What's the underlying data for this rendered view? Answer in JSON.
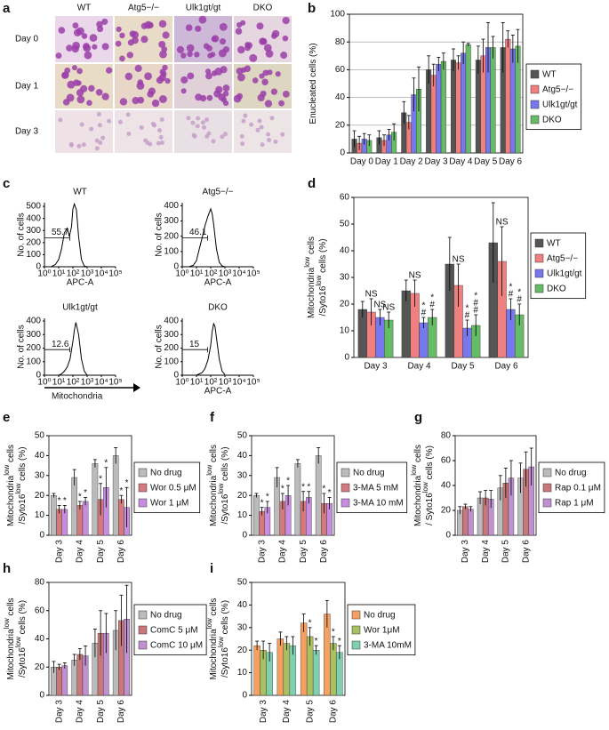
{
  "panel_labels": [
    "a",
    "b",
    "c",
    "d",
    "e",
    "f",
    "g",
    "h",
    "i"
  ],
  "panel_a": {
    "columns": [
      "WT",
      "Atg5−/−",
      "Ulk1gt/gt",
      "DKO"
    ],
    "rows": [
      "Day 0",
      "Day 1",
      "Day 3"
    ]
  },
  "panel_c": {
    "caption": "Mitochondria"
  },
  "chart_data": [
    {
      "type": "bar",
      "ylabel": [
        [
          "Enucleated cells (%)"
        ]
      ],
      "categories": [
        "Day 0",
        "Day 1",
        "Day 2",
        "Day 3",
        "Day 4",
        "Day 5",
        "Day 6"
      ],
      "ylim": [
        0,
        100
      ],
      "yticks": [
        0,
        20,
        40,
        60,
        80,
        100
      ],
      "grid": true,
      "series": [
        {
          "name": "WT",
          "color": "#555555",
          "values": [
            10,
            11,
            29,
            60,
            67,
            67,
            76
          ],
          "errors": [
            6,
            5,
            8,
            10,
            8,
            10,
            18
          ]
        },
        {
          "name": "Atg5−/−",
          "color": "#f08080",
          "values": [
            7,
            9,
            22,
            56,
            65,
            70,
            82
          ],
          "errors": [
            5,
            4,
            5,
            8,
            5,
            12,
            6
          ]
        },
        {
          "name": "Ulk1gt/gt",
          "color": "#7878ee",
          "values": [
            10,
            13,
            42,
            64,
            72,
            76,
            75
          ],
          "errors": [
            4,
            4,
            12,
            5,
            8,
            18,
            10
          ]
        },
        {
          "name": "DKO",
          "color": "#66bb66",
          "values": [
            9,
            15,
            46,
            66,
            78,
            76,
            77
          ],
          "errors": [
            4,
            6,
            16,
            6,
            1,
            8,
            12
          ]
        }
      ]
    },
    {
      "type": "flow",
      "title": "WT",
      "ylabel": "No. of cells",
      "xlabel": "APC-A",
      "xlim": [
        1,
        100000
      ],
      "log": true,
      "xticks": [
        {
          "value": 1,
          "label": "10⁰"
        },
        {
          "value": 10,
          "label": "10¹"
        },
        {
          "value": 100,
          "label": "10²"
        },
        {
          "value": 1000,
          "label": "10³"
        },
        {
          "value": 10000,
          "label": "10⁴"
        },
        {
          "value": 100000,
          "label": "10⁵"
        }
      ],
      "ylim": [
        0,
        530
      ],
      "yticks": [
        0,
        100,
        200,
        300,
        400,
        500
      ],
      "gate": 55.7,
      "x": [
        3,
        6,
        10,
        16,
        25,
        40,
        56,
        80,
        100,
        126,
        178,
        250,
        400,
        630,
        1000
      ],
      "values": [
        0,
        20,
        60,
        150,
        280,
        320,
        250,
        330,
        480,
        520,
        470,
        250,
        60,
        5,
        0
      ]
    },
    {
      "type": "flow",
      "title": "Atg5−/−",
      "ylabel": "No. of cells",
      "xlabel": "APC-A",
      "xlim": [
        1,
        100000
      ],
      "log": true,
      "xticks": [
        {
          "value": 1,
          "label": "10⁰"
        },
        {
          "value": 10,
          "label": "10¹"
        },
        {
          "value": 100,
          "label": "10²"
        },
        {
          "value": 1000,
          "label": "10³"
        },
        {
          "value": 10000,
          "label": "10⁴"
        },
        {
          "value": 100000,
          "label": "10⁵"
        }
      ],
      "ylim": [
        0,
        420
      ],
      "yticks": [
        0,
        100,
        200,
        300,
        400
      ],
      "gate": 46.1,
      "x": [
        3,
        6,
        10,
        16,
        25,
        40,
        63,
        100,
        126,
        160,
        250,
        400,
        630,
        1000
      ],
      "values": [
        0,
        10,
        40,
        120,
        190,
        270,
        330,
        380,
        350,
        280,
        120,
        30,
        5,
        0
      ]
    },
    {
      "type": "flow",
      "title": "Ulk1gt/gt",
      "ylabel": "No. of cells",
      "xlim": [
        1,
        100000
      ],
      "log": true,
      "xticks": [
        {
          "value": 1,
          "label": "10⁰"
        },
        {
          "value": 10,
          "label": "10¹"
        },
        {
          "value": 100,
          "label": "10²"
        },
        {
          "value": 1000,
          "label": "10³"
        },
        {
          "value": 10000,
          "label": "10⁴"
        },
        {
          "value": 100000,
          "label": "10⁵"
        }
      ],
      "ylim": [
        0,
        420
      ],
      "yticks": [
        0,
        100,
        200,
        300,
        400
      ],
      "gate": 12.6,
      "x": [
        10,
        16,
        25,
        40,
        63,
        100,
        126,
        160,
        200,
        250,
        400,
        630,
        1000
      ],
      "values": [
        0,
        10,
        30,
        60,
        120,
        250,
        330,
        390,
        350,
        300,
        120,
        30,
        0
      ]
    },
    {
      "type": "flow",
      "title": "DKO",
      "ylabel": "No. of cells",
      "xlabel": "APC-A",
      "xlim": [
        1,
        100000
      ],
      "log": true,
      "xticks": [
        {
          "value": 1,
          "label": "10⁰"
        },
        {
          "value": 10,
          "label": "10¹"
        },
        {
          "value": 100,
          "label": "10²"
        },
        {
          "value": 1000,
          "label": "10³"
        },
        {
          "value": 10000,
          "label": "10⁴"
        },
        {
          "value": 100000,
          "label": "10⁵"
        }
      ],
      "ylim": [
        0,
        420
      ],
      "yticks": [
        0,
        100,
        200,
        300,
        400
      ],
      "gate": 15,
      "x": [
        10,
        25,
        40,
        63,
        100,
        126,
        160,
        200,
        250,
        400,
        630,
        1000
      ],
      "values": [
        0,
        20,
        50,
        110,
        220,
        320,
        380,
        360,
        280,
        120,
        30,
        5
      ]
    },
    {
      "type": "bar",
      "ylabel": [
        [
          "Mitochondria",
          "low",
          " cells"
        ],
        [
          "/Syto16",
          "low",
          " cells (%)"
        ]
      ],
      "categories": [
        "Day 3",
        "Day 4",
        "Day 5",
        "Day 6"
      ],
      "ylim": [
        0,
        60
      ],
      "yticks": [
        0,
        10,
        20,
        30,
        40,
        50,
        60
      ],
      "grid": false,
      "series": [
        {
          "name": "WT",
          "color": "#555555",
          "values": [
            18,
            25,
            35,
            43
          ],
          "errors": [
            3,
            4,
            10,
            15
          ]
        },
        {
          "name": "Atg5−/−",
          "color": "#f08080",
          "values": [
            17,
            24,
            27,
            36
          ],
          "errors": [
            5,
            5,
            8,
            13
          ],
          "annotations": [
            [
              "NS"
            ],
            [
              "NS"
            ],
            [
              "NS"
            ],
            [
              "NS"
            ]
          ]
        },
        {
          "name": "Ulk1gt/gt",
          "color": "#7878ee",
          "values": [
            15,
            13,
            11,
            18
          ],
          "errors": [
            3,
            2,
            3,
            4
          ],
          "annotations": [
            [
              "NS"
            ],
            [
              "*",
              "#"
            ],
            [
              "*",
              "#"
            ],
            [
              "*",
              "#"
            ]
          ]
        },
        {
          "name": "DKO",
          "color": "#66bb66",
          "values": [
            14,
            15,
            12,
            16
          ],
          "errors": [
            3,
            3,
            4,
            4
          ],
          "annotations": [
            [
              "NS"
            ],
            [
              "*",
              "#"
            ],
            [
              "*",
              "#",
              "#"
            ],
            [
              "*",
              "#"
            ]
          ]
        }
      ]
    },
    {
      "type": "bar",
      "ylabel": [
        [
          "Mitochondria",
          "low",
          " cells"
        ],
        [
          "/Syto16",
          "low",
          " cells (%)"
        ]
      ],
      "categories": [
        "Day 3",
        "Day 4",
        "Day 5",
        "Day 6"
      ],
      "ylim": [
        0,
        50
      ],
      "yticks": [
        0,
        10,
        20,
        30,
        40,
        50
      ],
      "grid": false,
      "series": [
        {
          "name": "No drug",
          "color": "#bbbbbb",
          "values": [
            20,
            29,
            36,
            40
          ],
          "errors": [
            1,
            4,
            2,
            4
          ]
        },
        {
          "name": "Wor 0.5 μM",
          "color": "#d47a7c",
          "values": [
            13,
            15,
            18,
            18
          ],
          "errors": [
            2,
            2,
            8,
            2
          ],
          "annotations": [
            [
              "*"
            ],
            [
              "*"
            ],
            [
              "*"
            ],
            [
              "*"
            ]
          ]
        },
        {
          "name": "Wor 1 μM",
          "color": "#c78ee0",
          "values": [
            13,
            17,
            24,
            14
          ],
          "errors": [
            2,
            2,
            10,
            10
          ],
          "annotations": [
            [
              "*"
            ],
            [
              "*"
            ],
            [
              "*"
            ],
            [
              "*"
            ]
          ]
        }
      ]
    },
    {
      "type": "bar",
      "ylabel": [
        [
          "Mitochondria",
          "low",
          " cells"
        ],
        [
          "/Syto16",
          "low",
          " cells (%)"
        ]
      ],
      "categories": [
        "Day 3",
        "Day 4",
        "Day 5",
        "Day 6"
      ],
      "ylim": [
        0,
        50
      ],
      "yticks": [
        0,
        10,
        20,
        30,
        40,
        50
      ],
      "grid": false,
      "series": [
        {
          "name": "No drug",
          "color": "#bbbbbb",
          "values": [
            20,
            29,
            36,
            40
          ],
          "errors": [
            1,
            5,
            2,
            4
          ]
        },
        {
          "name": "3-MA 5 mM",
          "color": "#d47a7c",
          "values": [
            12,
            17,
            17,
            16
          ],
          "errors": [
            2,
            4,
            5,
            5
          ],
          "annotations": [
            [
              "*"
            ],
            [
              "*"
            ],
            [
              "*"
            ],
            [
              "*"
            ]
          ]
        },
        {
          "name": "3-MA 10 mM",
          "color": "#c78ee0",
          "values": [
            14,
            20,
            19,
            16
          ],
          "errors": [
            3,
            5,
            3,
            3
          ],
          "annotations": [
            [
              "*"
            ],
            [
              "*"
            ],
            [
              "*"
            ],
            [
              "*"
            ]
          ]
        }
      ]
    },
    {
      "type": "bar",
      "ylabel": [
        [
          "Mitochondria",
          "low",
          " cells"
        ],
        [
          "/ Syto16",
          "low",
          " cells (%)"
        ]
      ],
      "categories": [
        "Day 3",
        "Day 4",
        "Day 5",
        "Day 6"
      ],
      "ylim": [
        0,
        80
      ],
      "yticks": [
        0,
        20,
        40,
        60,
        80
      ],
      "grid": false,
      "series": [
        {
          "name": "No drug",
          "color": "#bbbbbb",
          "values": [
            20,
            30,
            38,
            46
          ],
          "errors": [
            3,
            5,
            10,
            12
          ]
        },
        {
          "name": "Rap 0.1 μM",
          "color": "#c87878",
          "values": [
            23,
            30,
            42,
            53
          ],
          "errors": [
            2,
            6,
            12,
            14
          ]
        },
        {
          "name": "Rap 1 μM",
          "color": "#c090d0",
          "values": [
            21,
            29,
            46,
            55
          ],
          "errors": [
            2,
            7,
            14,
            15
          ]
        }
      ]
    },
    {
      "type": "bar",
      "ylabel": [
        [
          "Mitochondria",
          "low",
          " cells"
        ],
        [
          "/Syto16",
          "low",
          " cells (%)"
        ]
      ],
      "categories": [
        "Day 3",
        "Day 4",
        "Day 5",
        "Day 6"
      ],
      "ylim": [
        0,
        80
      ],
      "yticks": [
        0,
        20,
        40,
        60,
        80
      ],
      "grid": false,
      "series": [
        {
          "name": "No drug",
          "color": "#bbbbbb",
          "values": [
            20,
            25,
            37,
            46
          ],
          "errors": [
            4,
            4,
            10,
            14
          ]
        },
        {
          "name": "ComC 5 μM",
          "color": "#c87878",
          "values": [
            20,
            29,
            44,
            53
          ],
          "errors": [
            2,
            4,
            16,
            18
          ]
        },
        {
          "name": "ComC 10 μM",
          "color": "#c090d0",
          "values": [
            21,
            28,
            44,
            54
          ],
          "errors": [
            2,
            7,
            14,
            24
          ]
        }
      ]
    },
    {
      "type": "bar",
      "ylabel": [
        [
          "Mitochondria",
          "low",
          " cells"
        ],
        [
          "/Syto16",
          "low",
          " cells (%)"
        ]
      ],
      "categories": [
        "Day 3",
        "Day 4",
        "Day 5",
        "Day 6"
      ],
      "ylim": [
        0,
        50
      ],
      "yticks": [
        0,
        10,
        20,
        30,
        40,
        50
      ],
      "grid": false,
      "series": [
        {
          "name": "No drug",
          "color": "#f5a060",
          "values": [
            22,
            25,
            32,
            36
          ],
          "errors": [
            2,
            3,
            4,
            6
          ]
        },
        {
          "name": "Wor 1μM",
          "color": "#a9c060",
          "values": [
            20,
            23,
            26,
            23
          ],
          "errors": [
            4,
            3,
            4,
            3
          ],
          "annotations": [
            [],
            [],
            [
              "*"
            ],
            [
              "*"
            ]
          ]
        },
        {
          "name": "3-MA 10mM",
          "color": "#80d0b0",
          "values": [
            19,
            22,
            20,
            19
          ],
          "errors": [
            4,
            4,
            2,
            3
          ],
          "annotations": [
            [],
            [],
            [
              "*"
            ],
            [
              "*"
            ]
          ]
        }
      ]
    }
  ]
}
